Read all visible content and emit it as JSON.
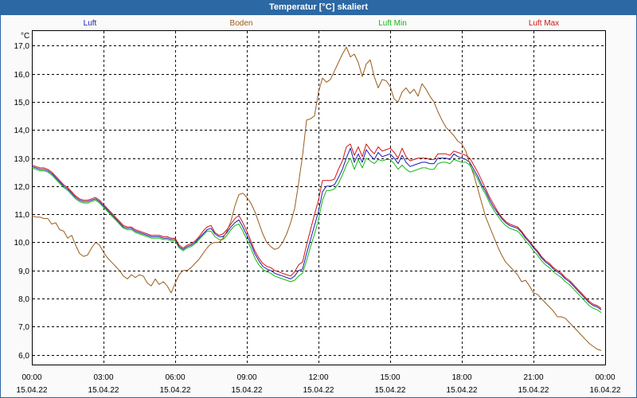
{
  "chart_data": {
    "type": "line",
    "title": "Temperatur [°C] skaliert",
    "xlabel": "",
    "ylabel": "°C",
    "start_hour": 0,
    "sample_interval_min": 10,
    "xlim": [
      0,
      24
    ],
    "ylim": [
      5.65,
      17.55
    ],
    "grid": true,
    "legend_position": "top",
    "x_ticks": [
      0,
      3,
      6,
      9,
      12,
      15,
      18,
      21,
      24
    ],
    "x_tick_labels": [
      {
        "time": "00:00",
        "date": "15.04.22"
      },
      {
        "time": "03:00",
        "date": "15.04.22"
      },
      {
        "time": "06:00",
        "date": "15.04.22"
      },
      {
        "time": "09:00",
        "date": "15.04.22"
      },
      {
        "time": "12:00",
        "date": "15.04.22"
      },
      {
        "time": "15:00",
        "date": "15.04.22"
      },
      {
        "time": "18:00",
        "date": "15.04.22"
      },
      {
        "time": "21:00",
        "date": "15.04.22"
      },
      {
        "time": "00:00",
        "date": "16.04.22"
      }
    ],
    "y_ticks": [
      6,
      7,
      8,
      9,
      10,
      11,
      12,
      13,
      14,
      15,
      16,
      17
    ],
    "y_tick_labels": [
      "6,0",
      "7,0",
      "8,0",
      "9,0",
      "10,0",
      "11,0",
      "12,0",
      "13,0",
      "14,0",
      "15,0",
      "16,0",
      "17,0"
    ],
    "series": [
      {
        "name": "Luft",
        "color": "#1c1cb4",
        "values": [
          12.7,
          12.65,
          12.6,
          12.6,
          12.55,
          12.45,
          12.3,
          12.15,
          12.0,
          11.9,
          11.75,
          11.6,
          11.5,
          11.45,
          11.45,
          11.5,
          11.55,
          11.45,
          11.3,
          11.15,
          11.0,
          10.85,
          10.7,
          10.55,
          10.5,
          10.5,
          10.4,
          10.35,
          10.3,
          10.25,
          10.2,
          10.2,
          10.2,
          10.15,
          10.15,
          10.1,
          10.1,
          9.85,
          9.75,
          9.85,
          9.9,
          10.0,
          10.15,
          10.3,
          10.45,
          10.5,
          10.3,
          10.2,
          10.2,
          10.35,
          10.55,
          10.7,
          10.8,
          10.55,
          10.25,
          9.95,
          9.6,
          9.35,
          9.15,
          9.05,
          9.0,
          8.9,
          8.85,
          8.8,
          8.75,
          8.7,
          8.8,
          9.0,
          9.05,
          9.6,
          10.1,
          10.6,
          11.1,
          11.8,
          12.0,
          12.0,
          12.05,
          12.3,
          12.6,
          13.0,
          13.35,
          12.85,
          13.15,
          12.85,
          13.3,
          13.1,
          12.95,
          13.2,
          13.05,
          13.1,
          13.15,
          13.0,
          12.8,
          13.1,
          12.85,
          12.7,
          12.75,
          12.8,
          12.85,
          12.85,
          12.8,
          12.8,
          13.0,
          13.0,
          13.0,
          12.95,
          13.15,
          13.05,
          13.0,
          12.95,
          12.85,
          12.6,
          12.35,
          12.05,
          11.8,
          11.5,
          11.25,
          11.05,
          10.85,
          10.7,
          10.6,
          10.55,
          10.5,
          10.35,
          10.15,
          10.0,
          9.8,
          9.65,
          9.45,
          9.3,
          9.2,
          9.05,
          8.95,
          8.85,
          8.7,
          8.6,
          8.45,
          8.3,
          8.15,
          8.0,
          7.85,
          7.75,
          7.7,
          7.6
        ]
      },
      {
        "name": "Boden",
        "color": "#9a5c1c",
        "values": [
          10.95,
          10.9,
          10.9,
          10.85,
          10.85,
          10.65,
          10.7,
          10.45,
          10.4,
          10.15,
          10.25,
          9.9,
          9.6,
          9.5,
          9.55,
          9.8,
          10.0,
          9.9,
          9.65,
          9.45,
          9.3,
          9.15,
          9.0,
          8.8,
          8.7,
          8.85,
          8.75,
          8.85,
          8.8,
          8.55,
          8.45,
          8.7,
          8.5,
          8.6,
          8.45,
          8.2,
          8.55,
          8.85,
          9.0,
          9.0,
          9.1,
          9.25,
          9.4,
          9.6,
          9.8,
          9.95,
          10.0,
          10.0,
          10.15,
          10.4,
          10.75,
          11.3,
          11.7,
          11.75,
          11.6,
          11.4,
          11.1,
          10.7,
          10.3,
          10.0,
          9.85,
          9.75,
          9.8,
          10.0,
          10.3,
          10.7,
          11.2,
          12.1,
          13.1,
          14.35,
          14.4,
          14.5,
          15.35,
          15.85,
          15.7,
          15.8,
          16.1,
          16.4,
          16.7,
          16.95,
          16.6,
          16.7,
          16.4,
          15.9,
          16.35,
          16.5,
          15.9,
          15.5,
          15.8,
          15.75,
          15.55,
          15.1,
          15.0,
          15.35,
          15.5,
          15.3,
          15.45,
          15.2,
          15.65,
          15.45,
          15.2,
          15.0,
          14.65,
          14.35,
          14.1,
          13.95,
          13.8,
          13.6,
          13.5,
          13.25,
          12.8,
          12.4,
          11.9,
          11.4,
          10.9,
          10.55,
          10.2,
          9.85,
          9.55,
          9.3,
          9.15,
          9.0,
          8.85,
          8.6,
          8.65,
          8.45,
          8.2,
          8.15,
          8.0,
          7.85,
          7.7,
          7.55,
          7.35,
          7.35,
          7.3,
          7.15,
          7.0,
          6.85,
          6.7,
          6.55,
          6.4,
          6.3,
          6.2,
          6.15
        ]
      },
      {
        "name": "Luft Min",
        "color": "#14b814",
        "values": [
          12.65,
          12.6,
          12.55,
          12.55,
          12.5,
          12.4,
          12.25,
          12.1,
          11.95,
          11.85,
          11.7,
          11.55,
          11.45,
          11.4,
          11.4,
          11.45,
          11.5,
          11.4,
          11.25,
          11.1,
          10.95,
          10.8,
          10.65,
          10.5,
          10.45,
          10.45,
          10.35,
          10.3,
          10.25,
          10.2,
          10.15,
          10.15,
          10.15,
          10.1,
          10.1,
          10.05,
          10.05,
          9.8,
          9.7,
          9.8,
          9.85,
          9.95,
          10.1,
          10.25,
          10.4,
          10.4,
          10.2,
          10.1,
          10.1,
          10.25,
          10.45,
          10.6,
          10.65,
          10.4,
          10.1,
          9.8,
          9.45,
          9.2,
          9.05,
          8.95,
          8.9,
          8.8,
          8.75,
          8.7,
          8.65,
          8.6,
          8.65,
          8.8,
          8.9,
          9.35,
          9.85,
          10.3,
          10.8,
          11.5,
          11.85,
          11.85,
          11.9,
          12.1,
          12.4,
          12.75,
          13.0,
          12.6,
          12.95,
          12.65,
          13.0,
          12.9,
          12.8,
          12.95,
          12.9,
          12.95,
          12.95,
          12.8,
          12.6,
          12.75,
          12.6,
          12.5,
          12.55,
          12.6,
          12.65,
          12.65,
          12.6,
          12.6,
          12.8,
          12.85,
          12.85,
          12.8,
          12.95,
          12.9,
          12.85,
          12.85,
          12.75,
          12.5,
          12.25,
          11.95,
          11.7,
          11.4,
          11.15,
          10.95,
          10.75,
          10.6,
          10.5,
          10.45,
          10.4,
          10.25,
          10.05,
          9.9,
          9.7,
          9.55,
          9.35,
          9.2,
          9.1,
          8.95,
          8.85,
          8.75,
          8.6,
          8.5,
          8.35,
          8.2,
          8.05,
          7.9,
          7.75,
          7.65,
          7.6,
          7.5
        ]
      },
      {
        "name": "Luft Max",
        "color": "#d01414",
        "values": [
          12.75,
          12.7,
          12.65,
          12.65,
          12.6,
          12.5,
          12.35,
          12.2,
          12.05,
          11.95,
          11.8,
          11.65,
          11.55,
          11.5,
          11.5,
          11.55,
          11.6,
          11.5,
          11.35,
          11.2,
          11.05,
          10.9,
          10.75,
          10.6,
          10.55,
          10.55,
          10.45,
          10.4,
          10.35,
          10.3,
          10.25,
          10.25,
          10.25,
          10.2,
          10.2,
          10.15,
          10.15,
          9.9,
          9.8,
          9.9,
          9.95,
          10.05,
          10.2,
          10.4,
          10.55,
          10.6,
          10.35,
          10.25,
          10.3,
          10.45,
          10.65,
          10.85,
          10.95,
          10.7,
          10.4,
          10.05,
          9.7,
          9.45,
          9.25,
          9.15,
          9.1,
          9.0,
          8.95,
          8.9,
          8.85,
          8.8,
          8.95,
          9.2,
          9.3,
          9.9,
          10.45,
          11.0,
          11.5,
          12.2,
          12.2,
          12.2,
          12.25,
          12.6,
          12.9,
          13.4,
          13.5,
          13.1,
          13.4,
          13.05,
          13.5,
          13.3,
          13.15,
          13.4,
          13.25,
          13.3,
          13.35,
          13.2,
          13.0,
          13.35,
          13.05,
          12.9,
          12.95,
          13.0,
          13.0,
          13.0,
          12.95,
          12.95,
          13.15,
          13.15,
          13.15,
          13.1,
          13.25,
          13.2,
          13.15,
          13.1,
          13.0,
          12.75,
          12.5,
          12.2,
          11.9,
          11.6,
          11.35,
          11.1,
          10.9,
          10.75,
          10.65,
          10.6,
          10.55,
          10.4,
          10.2,
          10.05,
          9.85,
          9.7,
          9.5,
          9.35,
          9.25,
          9.1,
          9.0,
          8.9,
          8.75,
          8.65,
          8.5,
          8.35,
          8.2,
          8.05,
          7.9,
          7.8,
          7.75,
          7.65
        ]
      }
    ]
  }
}
